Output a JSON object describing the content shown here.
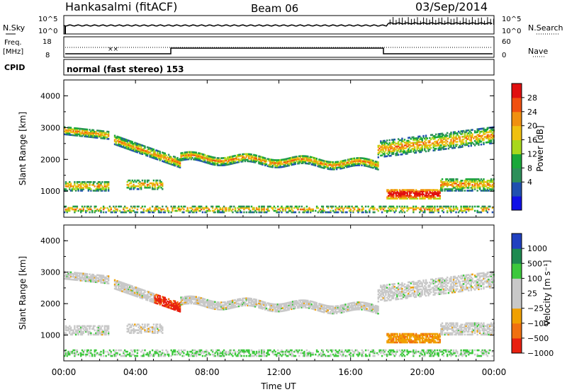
{
  "header": {
    "station": "Hankasalmi (fitACF)",
    "beam": "Beam 06",
    "date": "03/Sep/2014"
  },
  "top_panel": {
    "nsky_label": "N.Sky",
    "nsearch_label": "N.Search",
    "freq_label_1": "Freq.",
    "freq_label_2": "[MHz]",
    "nave_label": "Nave",
    "cpid_label": "CPID",
    "cpid_text": "normal (fast stereo) 153",
    "left_ticks_noise": [
      "10^5",
      "10^0"
    ],
    "right_ticks_noise": [
      "10^5",
      "10^0"
    ],
    "left_ticks_freq": [
      "18",
      "8"
    ],
    "right_ticks_nave": [
      "60",
      "0"
    ]
  },
  "chart_data": [
    {
      "type": "heatmap",
      "name": "power",
      "ylabel": "Slant Range [km]",
      "xlabel": "",
      "ylim": [
        180,
        4500
      ],
      "yticks": [
        "1000",
        "2000",
        "3000",
        "4000"
      ],
      "colorbar_label": "Power [dB]",
      "colorbar_ticks": [
        "28",
        "24",
        "20",
        "16",
        "12",
        "8",
        "4"
      ],
      "colors": [
        "#1010e6",
        "#2050b0",
        "#2e8f5a",
        "#1aa83a",
        "#a8d81c",
        "#f0c010",
        "#f09010",
        "#f05010",
        "#e01010"
      ]
    },
    {
      "type": "heatmap",
      "name": "velocity",
      "ylabel": "Slant Range [km]",
      "xlabel": "Time UT",
      "ylim": [
        180,
        4500
      ],
      "yticks": [
        "1000",
        "2000",
        "3000",
        "4000"
      ],
      "xticks": [
        "00:00",
        "04:00",
        "08:00",
        "12:00",
        "16:00",
        "20:00",
        "00:00"
      ],
      "colorbar_label": "Velocity [m s⁻¹]",
      "colorbar_ticks": [
        "1000",
        "500",
        "100",
        "25",
        "−25",
        "−100",
        "−500",
        "−1000"
      ],
      "colors": [
        "#2040c0",
        "#1e8a50",
        "#3cc83c",
        "#c8c8c8",
        "#c8c8c8",
        "#f0a000",
        "#f07010",
        "#e82010"
      ]
    }
  ]
}
